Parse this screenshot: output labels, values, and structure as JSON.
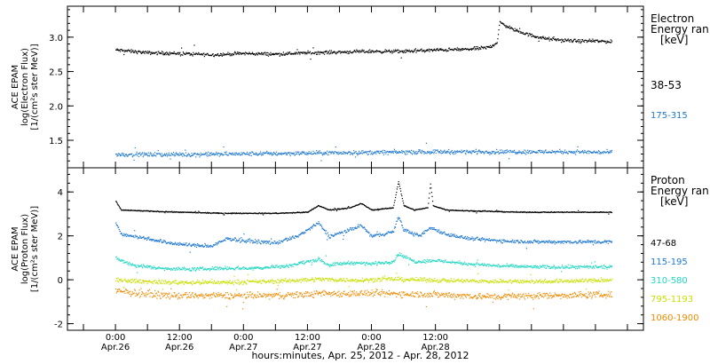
{
  "chart_data": [
    {
      "type": "scatter",
      "title": "",
      "ylabel_lines": [
        "ACE EPAM",
        "log(Electron Flux)",
        "[1/(cm²s ster MeV)]"
      ],
      "ylim": [
        1.1,
        3.45
      ],
      "yticks": [
        1.5,
        2.0,
        2.5,
        3.0
      ],
      "ytick_labels": [
        "1.5",
        "2.0",
        "2.5",
        "3.0"
      ],
      "legend_title": [
        "Electron",
        "Energy ran",
        "[keV]"
      ],
      "series": [
        {
          "name": "38-53",
          "color": "#000000",
          "jitter": 0.035,
          "points": [
            [
              0,
              2.82
            ],
            [
              6,
              2.78
            ],
            [
              12,
              2.77
            ],
            [
              18,
              2.75
            ],
            [
              24,
              2.77
            ],
            [
              30,
              2.76
            ],
            [
              36,
              2.78
            ],
            [
              42,
              2.79
            ],
            [
              48,
              2.8
            ],
            [
              54,
              2.8
            ],
            [
              60,
              2.82
            ],
            [
              66,
              2.83
            ],
            [
              70,
              2.86
            ],
            [
              71.5,
              2.93
            ],
            [
              72,
              3.22
            ],
            [
              73,
              3.18
            ],
            [
              75,
              3.1
            ],
            [
              78,
              3.03
            ],
            [
              81,
              2.98
            ],
            [
              84,
              2.96
            ],
            [
              87,
              2.95
            ],
            [
              90,
              2.95
            ],
            [
              93,
              2.94
            ]
          ]
        },
        {
          "name": "175-315",
          "color": "#1e78d2",
          "jitter": 0.045,
          "points": [
            [
              0,
              1.3
            ],
            [
              12,
              1.3
            ],
            [
              24,
              1.31
            ],
            [
              36,
              1.32
            ],
            [
              48,
              1.33
            ],
            [
              60,
              1.34
            ],
            [
              72,
              1.34
            ],
            [
              84,
              1.34
            ],
            [
              93,
              1.33
            ]
          ]
        }
      ]
    },
    {
      "type": "scatter",
      "title": "",
      "ylabel_lines": [
        "ACE EPAM",
        "log(Proton Flux)",
        "[1/(cm²s ster MeV)]"
      ],
      "ylim": [
        -2.3,
        5.1
      ],
      "yticks": [
        -2,
        0,
        2,
        4
      ],
      "ytick_labels": [
        "-2",
        "0",
        "2",
        "4"
      ],
      "legend_title": [
        "Proton",
        "Energy ran",
        "[keV]"
      ],
      "series": [
        {
          "name": "47-68",
          "color": "#000000",
          "jitter": 0.03,
          "points": [
            [
              0,
              3.6
            ],
            [
              1,
              3.2
            ],
            [
              6,
              3.15
            ],
            [
              12,
              3.1
            ],
            [
              20,
              3.05
            ],
            [
              30,
              3.05
            ],
            [
              36,
              3.1
            ],
            [
              38,
              3.4
            ],
            [
              40,
              3.2
            ],
            [
              44,
              3.3
            ],
            [
              46,
              3.5
            ],
            [
              48,
              3.2
            ],
            [
              52,
              3.3
            ],
            [
              53,
              4.5
            ],
            [
              54,
              3.4
            ],
            [
              56,
              3.2
            ],
            [
              58.5,
              3.3
            ],
            [
              59,
              4.4
            ],
            [
              59.5,
              3.4
            ],
            [
              62,
              3.2
            ],
            [
              68,
              3.15
            ],
            [
              76,
              3.1
            ],
            [
              84,
              3.1
            ],
            [
              93,
              3.1
            ]
          ]
        },
        {
          "name": "115-195",
          "color": "#1e78d2",
          "jitter": 0.12,
          "points": [
            [
              0,
              2.6
            ],
            [
              1,
              2.1
            ],
            [
              6,
              1.9
            ],
            [
              10,
              1.7
            ],
            [
              14,
              1.6
            ],
            [
              18,
              1.55
            ],
            [
              21,
              1.9
            ],
            [
              24,
              1.8
            ],
            [
              30,
              1.7
            ],
            [
              34,
              2.0
            ],
            [
              38,
              2.6
            ],
            [
              40,
              2.0
            ],
            [
              44,
              2.3
            ],
            [
              46,
              2.5
            ],
            [
              48,
              2.0
            ],
            [
              52,
              2.2
            ],
            [
              53,
              2.9
            ],
            [
              54,
              2.3
            ],
            [
              57,
              2.0
            ],
            [
              59,
              2.4
            ],
            [
              62,
              2.1
            ],
            [
              66,
              1.9
            ],
            [
              72,
              1.8
            ],
            [
              78,
              1.75
            ],
            [
              84,
              1.75
            ],
            [
              93,
              1.75
            ]
          ]
        },
        {
          "name": "310-580",
          "color": "#20d8c0",
          "jitter": 0.12,
          "points": [
            [
              0,
              1.0
            ],
            [
              3,
              0.7
            ],
            [
              8,
              0.55
            ],
            [
              14,
              0.5
            ],
            [
              20,
              0.55
            ],
            [
              26,
              0.55
            ],
            [
              32,
              0.65
            ],
            [
              38,
              0.95
            ],
            [
              40,
              0.7
            ],
            [
              44,
              0.8
            ],
            [
              48,
              0.75
            ],
            [
              52,
              0.85
            ],
            [
              53,
              1.2
            ],
            [
              56,
              0.85
            ],
            [
              60,
              0.9
            ],
            [
              66,
              0.75
            ],
            [
              72,
              0.65
            ],
            [
              80,
              0.6
            ],
            [
              88,
              0.6
            ],
            [
              93,
              0.6
            ]
          ]
        },
        {
          "name": "795-1193",
          "color": "#c8e000",
          "jitter": 0.14,
          "points": [
            [
              0,
              0.0
            ],
            [
              10,
              -0.1
            ],
            [
              20,
              -0.1
            ],
            [
              30,
              -0.05
            ],
            [
              38,
              0.05
            ],
            [
              44,
              0.0
            ],
            [
              52,
              0.05
            ],
            [
              60,
              0.0
            ],
            [
              70,
              -0.05
            ],
            [
              80,
              -0.05
            ],
            [
              93,
              0.0
            ]
          ]
        },
        {
          "name": "1060-1900",
          "color": "#f08a00",
          "jitter": 0.22,
          "points": [
            [
              0,
              -0.5
            ],
            [
              10,
              -0.7
            ],
            [
              20,
              -0.7
            ],
            [
              30,
              -0.7
            ],
            [
              40,
              -0.6
            ],
            [
              50,
              -0.6
            ],
            [
              60,
              -0.65
            ],
            [
              70,
              -0.75
            ],
            [
              80,
              -0.7
            ],
            [
              93,
              -0.65
            ]
          ]
        }
      ]
    }
  ],
  "x_axis": {
    "xlim": [
      -9,
      99
    ],
    "tick_hours": [
      -6,
      0,
      6,
      12,
      18,
      24,
      30,
      36,
      42,
      48,
      54,
      60,
      66,
      72,
      78,
      84,
      90,
      96
    ],
    "major_labels": [
      {
        "hour": 0,
        "time": "0:00",
        "date": "Apr.26"
      },
      {
        "hour": 12,
        "time": "12:00",
        "date": "Apr.26"
      },
      {
        "hour": 24,
        "time": "0:00",
        "date": "Apr.27"
      },
      {
        "hour": 36,
        "time": "12:00",
        "date": "Apr.27"
      },
      {
        "hour": 48,
        "time": "0:00",
        "date": "Apr.28"
      },
      {
        "hour": 60,
        "time": "12:00",
        "date": "Apr.28"
      }
    ],
    "xlabel": "hours:minutes, Apr. 25, 2012 - Apr. 28, 2012"
  }
}
